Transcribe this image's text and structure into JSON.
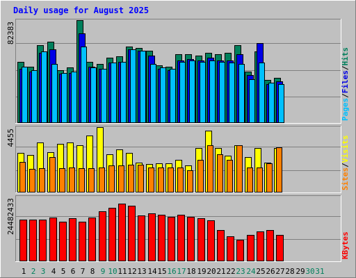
{
  "title": "Daily usage for August 2025",
  "colors": {
    "background": "#C0C0C0",
    "title": "#0000FF",
    "hits": "#00805C",
    "files": "#0000E6",
    "pages": "#00C0FF",
    "visits": "#FFFF00",
    "sites": "#FF8000",
    "kbytes": "#FF0000",
    "weekday_label": "#000000",
    "weekend_label": "#00805C"
  },
  "chart_data": [
    {
      "type": "bar",
      "panel": "hits",
      "title": "Daily usage for August 2025",
      "categories": [
        "1",
        "2",
        "3",
        "4",
        "5",
        "6",
        "7",
        "8",
        "9",
        "10",
        "11",
        "12",
        "13",
        "14",
        "15",
        "16",
        "17",
        "18",
        "19",
        "20",
        "21",
        "22",
        "23",
        "24",
        "25",
        "26",
        "27",
        "28",
        "29",
        "30",
        "31"
      ],
      "ymax_label": "82383",
      "ylim": [
        0,
        82383
      ],
      "series": [
        {
          "name": "Hits",
          "values": [
            49000,
            45000,
            62000,
            65000,
            42000,
            44000,
            82383,
            49000,
            47000,
            52000,
            53000,
            61000,
            60000,
            58000,
            46000,
            45000,
            55000,
            55000,
            54000,
            56000,
            55000,
            56000,
            62000,
            41000,
            57000,
            34000,
            36000,
            0,
            0,
            0,
            0
          ]
        },
        {
          "name": "Files",
          "values": [
            43000,
            41000,
            56000,
            59000,
            39000,
            40000,
            72000,
            45000,
            43000,
            48000,
            49000,
            59000,
            58000,
            54000,
            43000,
            42000,
            50000,
            51000,
            50000,
            52000,
            50000,
            50000,
            55000,
            38000,
            64000,
            31000,
            33000,
            0,
            0,
            0,
            0
          ]
        },
        {
          "name": "Pages",
          "values": [
            45000,
            42000,
            57000,
            47000,
            40000,
            41000,
            61000,
            44000,
            43000,
            48000,
            49000,
            59000,
            58000,
            47000,
            44000,
            43000,
            49000,
            50000,
            49000,
            50000,
            49000,
            48000,
            47000,
            35000,
            48000,
            32000,
            31000,
            0,
            0,
            0,
            0
          ]
        }
      ],
      "axis_right_labels": [
        "Pages",
        "Files",
        "Hits"
      ]
    },
    {
      "type": "bar",
      "panel": "visits",
      "categories": [
        "1",
        "2",
        "3",
        "4",
        "5",
        "6",
        "7",
        "8",
        "9",
        "10",
        "11",
        "12",
        "13",
        "14",
        "15",
        "16",
        "17",
        "18",
        "19",
        "20",
        "21",
        "22",
        "23",
        "24",
        "25",
        "26",
        "27",
        "28",
        "29",
        "30",
        "31"
      ],
      "ymax_label": "4455",
      "ylim": [
        0,
        4455
      ],
      "series": [
        {
          "name": "Visits",
          "values": [
            2700,
            2550,
            3400,
            2750,
            3300,
            3400,
            3200,
            3900,
            4455,
            2600,
            2900,
            2700,
            2000,
            1900,
            1950,
            1950,
            2200,
            1800,
            3000,
            4200,
            3000,
            2500,
            3200,
            2400,
            3000,
            2000,
            3000,
            0,
            0,
            0,
            0
          ]
        },
        {
          "name": "Sites",
          "values": [
            2050,
            1600,
            1650,
            2400,
            1650,
            1700,
            1650,
            1650,
            1700,
            1800,
            1800,
            1850,
            1850,
            1700,
            1700,
            1700,
            1700,
            1500,
            2200,
            3200,
            2600,
            2200,
            3200,
            1700,
            1700,
            1950,
            3050,
            0,
            0,
            0,
            0
          ]
        }
      ],
      "axis_right_labels": [
        "Sites",
        "Visits"
      ]
    },
    {
      "type": "bar",
      "panel": "kbytes",
      "categories": [
        "1",
        "2",
        "3",
        "4",
        "5",
        "6",
        "7",
        "8",
        "9",
        "10",
        "11",
        "12",
        "13",
        "14",
        "15",
        "16",
        "17",
        "18",
        "19",
        "20",
        "21",
        "22",
        "23",
        "24",
        "25",
        "26",
        "27",
        "28",
        "29",
        "30",
        "31"
      ],
      "ymax_label": "24482433",
      "ylim": [
        0,
        24482433
      ],
      "series": [
        {
          "name": "KBytes",
          "values": [
            15800000,
            15600000,
            15700000,
            16500000,
            14800000,
            16200000,
            14800000,
            16600000,
            19000000,
            20100000,
            21900000,
            21000000,
            17400000,
            18100000,
            17600000,
            16700000,
            17500000,
            16700000,
            16300000,
            15500000,
            11600000,
            9200000,
            8100000,
            9800000,
            11200000,
            11700000,
            9800000,
            0,
            0,
            0,
            0
          ]
        }
      ],
      "axis_right_labels": [
        "KBytes"
      ]
    }
  ]
}
